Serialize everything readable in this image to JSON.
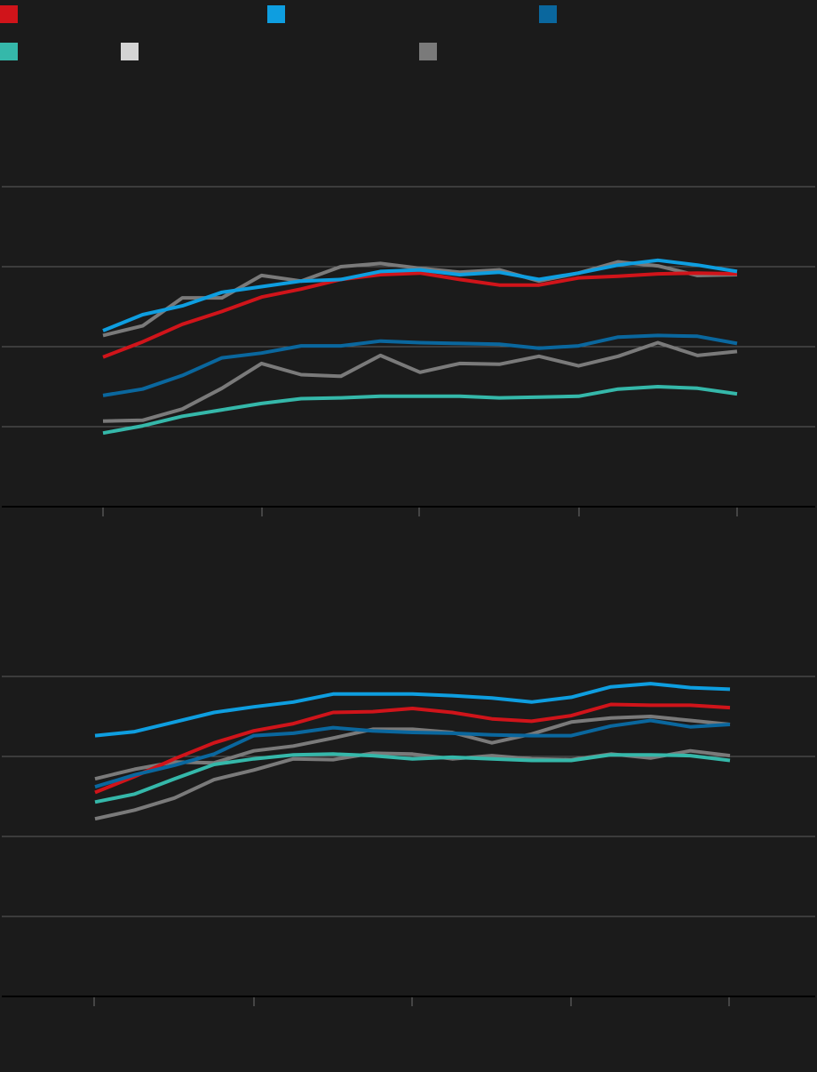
{
  "legend": [
    {
      "name": "",
      "color": "#d0141a"
    },
    {
      "name": "",
      "color": "#0e9ee0"
    },
    {
      "name": "",
      "color": "#0a679e"
    },
    {
      "name": "",
      "color": "#35b8aa"
    },
    {
      "name": "",
      "color": "#d4d4d4"
    },
    {
      "name": "",
      "color": "#7a7a7a"
    }
  ],
  "chart_data": [
    {
      "type": "line",
      "title": "",
      "xlabel": "",
      "ylabel": "",
      "x": [
        1,
        2,
        3,
        4,
        5,
        6,
        7,
        8,
        9,
        10,
        11,
        12,
        13,
        14,
        15,
        16,
        17
      ],
      "ylim": [
        0,
        4
      ],
      "grid": true,
      "series": [
        {
          "color": "#7a7a7a",
          "values": [
            2.14,
            2.26,
            2.61,
            2.61,
            2.89,
            2.82,
            3.0,
            3.04,
            2.98,
            2.93,
            2.96,
            2.82,
            2.92,
            3.06,
            3.01,
            2.89,
            2.9
          ]
        },
        {
          "color": "#d0141a",
          "values": [
            1.87,
            2.06,
            2.28,
            2.44,
            2.62,
            2.72,
            2.84,
            2.9,
            2.92,
            2.84,
            2.77,
            2.77,
            2.86,
            2.88,
            2.91,
            2.92,
            2.91
          ]
        },
        {
          "color": "#0e9ee0",
          "values": [
            2.2,
            2.4,
            2.51,
            2.68,
            2.75,
            2.82,
            2.84,
            2.94,
            2.96,
            2.9,
            2.93,
            2.84,
            2.92,
            3.02,
            3.08,
            3.02,
            2.94
          ]
        },
        {
          "color": "#0a679e",
          "values": [
            1.39,
            1.47,
            1.64,
            1.86,
            1.92,
            2.01,
            2.01,
            2.07,
            2.05,
            2.04,
            2.03,
            1.98,
            2.01,
            2.12,
            2.14,
            2.13,
            2.04
          ]
        },
        {
          "color": "#7a7a7a",
          "values": [
            1.07,
            1.08,
            1.22,
            1.48,
            1.79,
            1.65,
            1.63,
            1.89,
            1.68,
            1.79,
            1.78,
            1.88,
            1.76,
            1.88,
            2.05,
            1.89,
            1.94
          ]
        },
        {
          "color": "#35b8aa",
          "values": [
            0.92,
            1.01,
            1.13,
            1.21,
            1.29,
            1.35,
            1.36,
            1.38,
            1.38,
            1.38,
            1.36,
            1.37,
            1.38,
            1.47,
            1.5,
            1.48,
            1.41
          ]
        }
      ]
    },
    {
      "type": "line",
      "title": "",
      "xlabel": "",
      "ylabel": "",
      "x": [
        1,
        2,
        3,
        4,
        5,
        6,
        7,
        8,
        9,
        10,
        11,
        12,
        13,
        14,
        15,
        16,
        17
      ],
      "ylim": [
        0,
        4
      ],
      "grid": true,
      "series": [
        {
          "color": "#7a7a7a",
          "values": [
            2.72,
            2.84,
            2.93,
            2.92,
            3.07,
            3.13,
            3.23,
            3.34,
            3.34,
            3.3,
            3.17,
            3.28,
            3.43,
            3.48,
            3.5,
            3.45,
            3.4
          ]
        },
        {
          "color": "#0e9ee0",
          "values": [
            3.26,
            3.31,
            3.43,
            3.55,
            3.62,
            3.68,
            3.78,
            3.78,
            3.78,
            3.76,
            3.73,
            3.68,
            3.74,
            3.87,
            3.91,
            3.86,
            3.84
          ]
        },
        {
          "color": "#d0141a",
          "values": [
            2.55,
            2.75,
            2.97,
            3.17,
            3.32,
            3.41,
            3.55,
            3.56,
            3.6,
            3.55,
            3.47,
            3.44,
            3.51,
            3.65,
            3.64,
            3.64,
            3.61
          ]
        },
        {
          "color": "#0a679e",
          "values": [
            2.62,
            2.77,
            2.89,
            3.03,
            3.26,
            3.29,
            3.36,
            3.32,
            3.3,
            3.29,
            3.27,
            3.26,
            3.26,
            3.38,
            3.45,
            3.37,
            3.4
          ]
        },
        {
          "color": "#7a7a7a",
          "values": [
            2.22,
            2.33,
            2.48,
            2.71,
            2.83,
            2.97,
            2.96,
            3.04,
            3.03,
            2.97,
            3.01,
            2.97,
            2.96,
            3.03,
            2.98,
            3.07,
            3.01
          ]
        },
        {
          "color": "#35b8aa",
          "values": [
            2.43,
            2.53,
            2.72,
            2.9,
            2.97,
            3.02,
            3.03,
            3.01,
            2.97,
            2.99,
            2.97,
            2.95,
            2.95,
            3.02,
            3.02,
            3.01,
            2.95
          ]
        }
      ]
    }
  ]
}
